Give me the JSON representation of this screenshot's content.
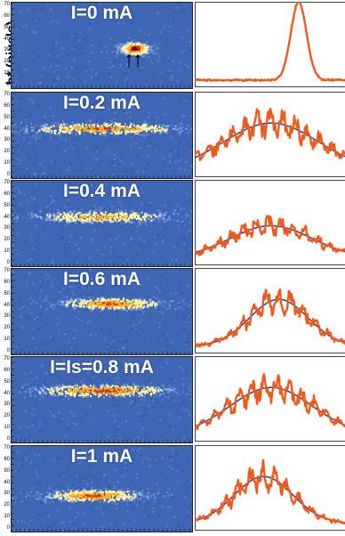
{
  "axis": {
    "ylabel": "b* (pixels)",
    "ticks": [
      "70",
      "60",
      "50",
      "40",
      "30",
      "20",
      "10",
      "0"
    ]
  },
  "colors": {
    "background": "#3f66b4",
    "fit": "#1f4fa8",
    "data": "#ee5a1c"
  },
  "panels": [
    {
      "label": "I=0 mA",
      "peak_y": 33,
      "spread_x": 0.08,
      "center_x": 0.68,
      "intensity": 1.0
    },
    {
      "label": "I=0.2 mA",
      "peak_y": 41,
      "spread_x": 0.48,
      "center_x": 0.5,
      "intensity": 0.7
    },
    {
      "label": "I=0.4 mA",
      "peak_y": 41,
      "spread_x": 0.42,
      "center_x": 0.5,
      "intensity": 0.55
    },
    {
      "label": "I=0.6 mA",
      "peak_y": 42,
      "spread_x": 0.3,
      "center_x": 0.55,
      "intensity": 0.75
    },
    {
      "label": "I=Is=0.8 mA",
      "peak_y": 43,
      "spread_x": 0.42,
      "center_x": 0.5,
      "intensity": 0.8
    },
    {
      "label": "I=1 mA",
      "peak_y": 30,
      "spread_x": 0.3,
      "center_x": 0.45,
      "intensity": 0.75
    }
  ]
}
